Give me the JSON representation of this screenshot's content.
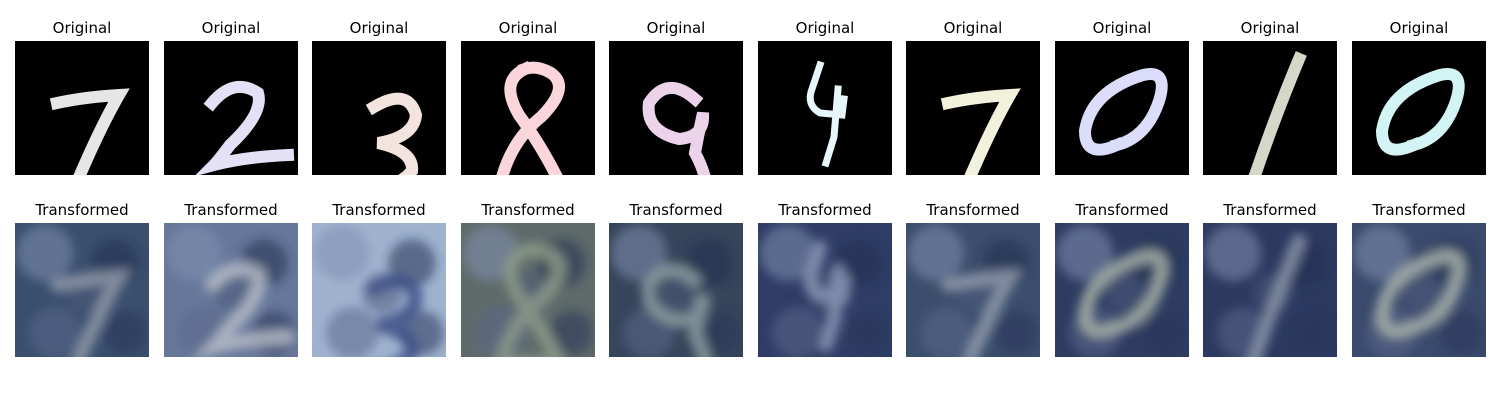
{
  "rows": [
    {
      "label": "Original",
      "kind": "original",
      "panels": [
        {
          "digit": "7",
          "color": "#e6e6e6"
        },
        {
          "digit": "2",
          "color": "#e4e0f5"
        },
        {
          "digit": "3",
          "color": "#f4e4e0"
        },
        {
          "digit": "8",
          "color": "#fad6dc"
        },
        {
          "digit": "9",
          "color": "#ecd3ea"
        },
        {
          "digit": "4",
          "color": "#e6f6fb"
        },
        {
          "digit": "7",
          "color": "#f1f1dc"
        },
        {
          "digit": "0",
          "color": "#dcdcfb"
        },
        {
          "digit": "1",
          "color": "#d4d8c8"
        },
        {
          "digit": "0",
          "color": "#d2f4f4"
        }
      ]
    },
    {
      "label": "Transformed",
      "kind": "transformed",
      "panels": [
        {
          "digit": "7",
          "bg": "#3a4f6e",
          "fg": "#8f98a8"
        },
        {
          "digit": "2",
          "bg": "#66779a",
          "fg": "#b6bcc8"
        },
        {
          "digit": "3",
          "bg": "#9fb3cf",
          "fg": "#3d4f87"
        },
        {
          "digit": "8",
          "bg": "#5e6a6a",
          "fg": "#8b9a8a"
        },
        {
          "digit": "9",
          "bg": "#36455b",
          "fg": "#8b9ca0"
        },
        {
          "digit": "4",
          "bg": "#2f3d66",
          "fg": "#8896b4"
        },
        {
          "digit": "7",
          "bg": "#3b4e6c",
          "fg": "#909aab"
        },
        {
          "digit": "0",
          "bg": "#2e3c62",
          "fg": "#a6b0a6"
        },
        {
          "digit": "1",
          "bg": "#2c3a60",
          "fg": "#8894a8"
        },
        {
          "digit": "0",
          "bg": "#3a4a6c",
          "fg": "#a8b2aa"
        }
      ]
    }
  ]
}
